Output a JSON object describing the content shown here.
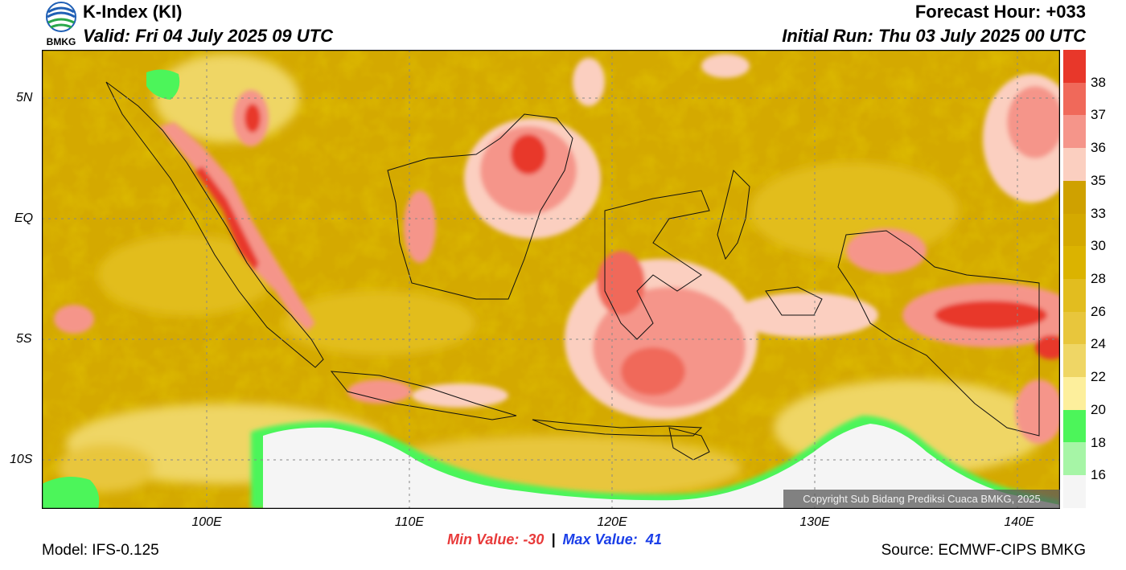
{
  "header": {
    "title": "K-Index (KI)",
    "valid": "Valid: Fri 04 July 2025 09 UTC",
    "forecast_hour": "Forecast Hour: +033",
    "initial_run": "Initial Run: Thu 03 July 2025 00 UTC",
    "logo_text": "BMKG"
  },
  "map": {
    "lat_labels": [
      "5N",
      "EQ",
      "5S",
      "10S"
    ],
    "lon_labels": [
      "100E",
      "110E",
      "120E",
      "130E",
      "140E"
    ],
    "copyright": "Copyright Sub Bidang Prediksi Cuaca BMKG, 2025"
  },
  "colorbar": {
    "labels": [
      "38",
      "37",
      "36",
      "35",
      "33",
      "30",
      "28",
      "26",
      "24",
      "22",
      "20",
      "18",
      "16"
    ],
    "colors": [
      "#e8372a",
      "#f0695a",
      "#f5958a",
      "#fbcfc0",
      "#cfa100",
      "#d4a900",
      "#dbb300",
      "#e2bd1f",
      "#e8c63c",
      "#efd665",
      "#fdef9c",
      "#4cf55a",
      "#a6f5a6",
      "#f5f5f5"
    ]
  },
  "stats": {
    "min": "Min Value: -30",
    "separator": "|",
    "max": "Max Value:  41",
    "min_color": "#e83a3a",
    "max_color": "#1a3ee8"
  },
  "footer": {
    "model": "Model: IFS-0.125",
    "source": "Source: ECMWF-CIPS BMKG"
  }
}
